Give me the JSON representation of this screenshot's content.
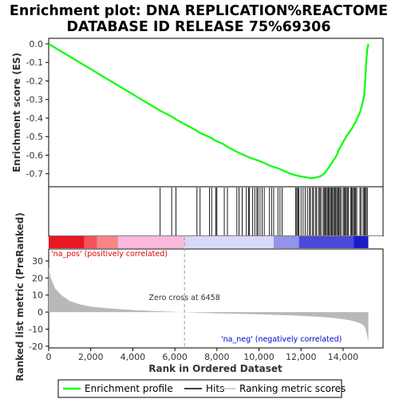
{
  "chart_data": {
    "type": "line",
    "title_line1": "Enrichment plot: DNA REPLICATION%REACTOME",
    "title_line2": "DATABASE ID RELEASE 75%69306",
    "top_panel": {
      "ylabel": "Enrichment score (ES)",
      "ylim": [
        -0.77,
        0.03
      ],
      "yticks": [
        "0.0",
        "-0.1",
        "-0.2",
        "-0.3",
        "-0.4",
        "-0.5",
        "-0.6",
        "-0.7"
      ],
      "ytick_values": [
        0.0,
        -0.1,
        -0.2,
        -0.3,
        -0.4,
        -0.5,
        -0.6,
        -0.7
      ],
      "series": [
        {
          "name": "Enrichment profile",
          "color": "#00ff00",
          "x": [
            0,
            1000,
            2000,
            3000,
            4000,
            5000,
            5300,
            5900,
            6100,
            7000,
            7200,
            7700,
            7900,
            8300,
            8500,
            9000,
            9300,
            9600,
            10000,
            10300,
            10600,
            10900,
            11100,
            11500,
            11800,
            12000,
            12300,
            12500,
            12700,
            12900,
            13100,
            13300,
            13500,
            13700,
            13800,
            14000,
            14200,
            14400,
            14600,
            14800,
            14900,
            15000,
            15050,
            15100,
            15150,
            15200
          ],
          "y": [
            0.0,
            -0.068,
            -0.136,
            -0.204,
            -0.272,
            -0.34,
            -0.36,
            -0.395,
            -0.41,
            -0.465,
            -0.48,
            -0.505,
            -0.52,
            -0.54,
            -0.555,
            -0.585,
            -0.6,
            -0.615,
            -0.63,
            -0.645,
            -0.66,
            -0.67,
            -0.68,
            -0.7,
            -0.71,
            -0.715,
            -0.72,
            -0.725,
            -0.72,
            -0.715,
            -0.7,
            -0.67,
            -0.635,
            -0.6,
            -0.57,
            -0.53,
            -0.49,
            -0.46,
            -0.42,
            -0.37,
            -0.33,
            -0.28,
            -0.2,
            -0.1,
            -0.03,
            0.0
          ]
        }
      ]
    },
    "hits": {
      "positions": [
        5300,
        5850,
        6050,
        7050,
        7200,
        7650,
        7750,
        7950,
        8000,
        8350,
        8500,
        8950,
        9050,
        9200,
        9400,
        9500,
        9550,
        9700,
        9800,
        9900,
        9950,
        10050,
        10150,
        10250,
        10500,
        10600,
        10700,
        10900,
        11000,
        11100,
        11750,
        11800,
        11850,
        11900,
        12000,
        12100,
        12200,
        12300,
        12400,
        12450,
        12550,
        12600,
        12700,
        12750,
        12850,
        12900,
        12950,
        13050,
        13100,
        13150,
        13200,
        13250,
        13300,
        13350,
        13400,
        13450,
        13500,
        13550,
        13600,
        13650,
        13700,
        13750,
        13800,
        13850,
        13900,
        14000,
        14050,
        14100,
        14150,
        14200,
        14250,
        14350,
        14400,
        14450,
        14500,
        14550,
        14600,
        14650,
        14800,
        14850,
        14950,
        15000,
        15050,
        15100,
        15150
      ]
    },
    "bottom_panel": {
      "ylabel": "Ranked list metric (PreRanked)",
      "ylim": [
        -21,
        37
      ],
      "yticks": [
        "30",
        "20",
        "10",
        "0",
        "-10",
        "-20"
      ],
      "ytick_values": [
        30,
        20,
        10,
        0,
        -10,
        -20
      ],
      "xlabel": "Rank in Ordered Dataset",
      "xlim": [
        0,
        15900
      ],
      "xticks": [
        "0",
        "2,000",
        "4,000",
        "6,000",
        "8,000",
        "10,000",
        "12,000",
        "14,000"
      ],
      "xtick_values": [
        0,
        2000,
        4000,
        6000,
        8000,
        10000,
        12000,
        14000
      ],
      "metric_x": [
        0,
        100,
        300,
        600,
        1000,
        1500,
        2000,
        3000,
        4000,
        5000,
        6000,
        6458,
        7000,
        8000,
        9000,
        10000,
        11000,
        12000,
        13000,
        13500,
        14000,
        14400,
        14700,
        14900,
        15050,
        15150,
        15200
      ],
      "metric_y": [
        26,
        20,
        14,
        10,
        6.5,
        4.5,
        3.2,
        2.0,
        1.2,
        0.6,
        0.2,
        0.0,
        -0.3,
        -0.7,
        -1.0,
        -1.3,
        -1.7,
        -2.2,
        -2.9,
        -3.4,
        -4.1,
        -5.0,
        -6.0,
        -7.0,
        -9.0,
        -14.0,
        -18.0
      ],
      "zero_cross_label": "Zero cross at 6458",
      "zero_cross_x": 6458,
      "pos_label": "'na_pos' (positively correlated)",
      "neg_label": "'na_neg' (negatively correlated)",
      "pos_color": "#dd0000",
      "neg_color": "#0000cc"
    },
    "heatbar_colors": [
      "#e81720",
      "#f5525a",
      "#fb8487",
      "#fbb8dc",
      "#d8d8f8",
      "#9393ea",
      "#4a4ad8",
      "#1c1cc4"
    ],
    "legend": [
      {
        "label": "Enrichment profile",
        "color": "#00ff00"
      },
      {
        "label": "Hits",
        "color": "#000000"
      },
      {
        "label": "Ranking metric scores",
        "color": "#c0c0c0"
      }
    ]
  }
}
